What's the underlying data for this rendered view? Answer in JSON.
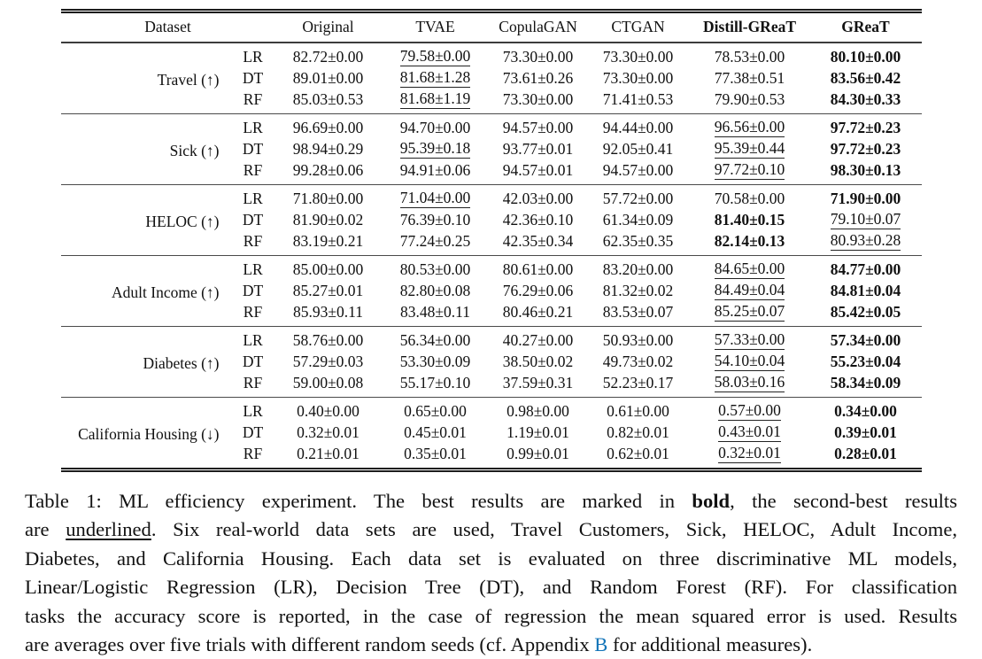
{
  "table": {
    "header": {
      "dataset": "Dataset",
      "columns": [
        {
          "label": "Original",
          "bold": false
        },
        {
          "label": "TVAE",
          "bold": false
        },
        {
          "label": "CopulaGAN",
          "bold": false
        },
        {
          "label": "CTGAN",
          "bold": false
        },
        {
          "label": "Distill-GReaT",
          "bold": true
        },
        {
          "label": "GReaT",
          "bold": true
        }
      ]
    },
    "groups": [
      {
        "dataset": "Travel (↑)",
        "rows": [
          {
            "model": "LR",
            "cells": [
              {
                "v": "82.72±0.00"
              },
              {
                "v": "79.58±0.00",
                "m": "u"
              },
              {
                "v": "73.30±0.00"
              },
              {
                "v": "73.30±0.00"
              },
              {
                "v": "78.53±0.00"
              },
              {
                "v": "80.10±0.00",
                "m": "b"
              }
            ]
          },
          {
            "model": "DT",
            "cells": [
              {
                "v": "89.01±0.00"
              },
              {
                "v": "81.68±1.28",
                "m": "u"
              },
              {
                "v": "73.61±0.26"
              },
              {
                "v": "73.30±0.00"
              },
              {
                "v": "77.38±0.51"
              },
              {
                "v": "83.56±0.42",
                "m": "b"
              }
            ]
          },
          {
            "model": "RF",
            "cells": [
              {
                "v": "85.03±0.53"
              },
              {
                "v": "81.68±1.19",
                "m": "u"
              },
              {
                "v": "73.30±0.00"
              },
              {
                "v": "71.41±0.53"
              },
              {
                "v": "79.90±0.53"
              },
              {
                "v": "84.30±0.33",
                "m": "b"
              }
            ]
          }
        ]
      },
      {
        "dataset": "Sick (↑)",
        "rows": [
          {
            "model": "LR",
            "cells": [
              {
                "v": "96.69±0.00"
              },
              {
                "v": "94.70±0.00"
              },
              {
                "v": "94.57±0.00"
              },
              {
                "v": "94.44±0.00"
              },
              {
                "v": "96.56±0.00",
                "m": "u"
              },
              {
                "v": "97.72±0.23",
                "m": "b"
              }
            ]
          },
          {
            "model": "DT",
            "cells": [
              {
                "v": "98.94±0.29"
              },
              {
                "v": "95.39±0.18",
                "m": "u"
              },
              {
                "v": "93.77±0.01"
              },
              {
                "v": "92.05±0.41"
              },
              {
                "v": "95.39±0.44",
                "m": "u"
              },
              {
                "v": "97.72±0.23",
                "m": "b"
              }
            ]
          },
          {
            "model": "RF",
            "cells": [
              {
                "v": "99.28±0.06"
              },
              {
                "v": "94.91±0.06"
              },
              {
                "v": "94.57±0.01"
              },
              {
                "v": "94.57±0.00"
              },
              {
                "v": "97.72±0.10",
                "m": "u"
              },
              {
                "v": "98.30±0.13",
                "m": "b"
              }
            ]
          }
        ]
      },
      {
        "dataset": "HELOC (↑)",
        "rows": [
          {
            "model": "LR",
            "cells": [
              {
                "v": "71.80±0.00"
              },
              {
                "v": "71.04±0.00",
                "m": "u"
              },
              {
                "v": "42.03±0.00"
              },
              {
                "v": "57.72±0.00"
              },
              {
                "v": "70.58±0.00"
              },
              {
                "v": "71.90±0.00",
                "m": "b"
              }
            ]
          },
          {
            "model": "DT",
            "cells": [
              {
                "v": "81.90±0.02"
              },
              {
                "v": "76.39±0.10"
              },
              {
                "v": "42.36±0.10"
              },
              {
                "v": "61.34±0.09"
              },
              {
                "v": "81.40±0.15",
                "m": "b"
              },
              {
                "v": "79.10±0.07",
                "m": "u"
              }
            ]
          },
          {
            "model": "RF",
            "cells": [
              {
                "v": "83.19±0.21"
              },
              {
                "v": "77.24±0.25"
              },
              {
                "v": "42.35±0.34"
              },
              {
                "v": "62.35±0.35"
              },
              {
                "v": "82.14±0.13",
                "m": "b"
              },
              {
                "v": "80.93±0.28",
                "m": "u"
              }
            ]
          }
        ]
      },
      {
        "dataset": "Adult Income (↑)",
        "rows": [
          {
            "model": "LR",
            "cells": [
              {
                "v": "85.00±0.00"
              },
              {
                "v": "80.53±0.00"
              },
              {
                "v": "80.61±0.00"
              },
              {
                "v": "83.20±0.00"
              },
              {
                "v": "84.65±0.00",
                "m": "u"
              },
              {
                "v": "84.77±0.00",
                "m": "b"
              }
            ]
          },
          {
            "model": "DT",
            "cells": [
              {
                "v": "85.27±0.01"
              },
              {
                "v": "82.80±0.08"
              },
              {
                "v": "76.29±0.06"
              },
              {
                "v": "81.32±0.02"
              },
              {
                "v": "84.49±0.04",
                "m": "u"
              },
              {
                "v": "84.81±0.04",
                "m": "b"
              }
            ]
          },
          {
            "model": "RF",
            "cells": [
              {
                "v": "85.93±0.11"
              },
              {
                "v": "83.48±0.11"
              },
              {
                "v": "80.46±0.21"
              },
              {
                "v": "83.53±0.07"
              },
              {
                "v": "85.25±0.07",
                "m": "u"
              },
              {
                "v": "85.42±0.05",
                "m": "b"
              }
            ]
          }
        ]
      },
      {
        "dataset": "Diabetes (↑)",
        "rows": [
          {
            "model": "LR",
            "cells": [
              {
                "v": "58.76±0.00"
              },
              {
                "v": "56.34±0.00"
              },
              {
                "v": "40.27±0.00"
              },
              {
                "v": "50.93±0.00"
              },
              {
                "v": "57.33±0.00",
                "m": "u"
              },
              {
                "v": "57.34±0.00",
                "m": "b"
              }
            ]
          },
          {
            "model": "DT",
            "cells": [
              {
                "v": "57.29±0.03"
              },
              {
                "v": "53.30±0.09"
              },
              {
                "v": "38.50±0.02"
              },
              {
                "v": "49.73±0.02"
              },
              {
                "v": "54.10±0.04",
                "m": "u"
              },
              {
                "v": "55.23±0.04",
                "m": "b"
              }
            ]
          },
          {
            "model": "RF",
            "cells": [
              {
                "v": "59.00±0.08"
              },
              {
                "v": "55.17±0.10"
              },
              {
                "v": "37.59±0.31"
              },
              {
                "v": "52.23±0.17"
              },
              {
                "v": "58.03±0.16",
                "m": "u"
              },
              {
                "v": "58.34±0.09",
                "m": "b"
              }
            ]
          }
        ]
      },
      {
        "dataset": "California Housing (↓)",
        "rows": [
          {
            "model": "LR",
            "cells": [
              {
                "v": "0.40±0.00"
              },
              {
                "v": "0.65±0.00"
              },
              {
                "v": "0.98±0.00"
              },
              {
                "v": "0.61±0.00"
              },
              {
                "v": "0.57±0.00",
                "m": "u"
              },
              {
                "v": "0.34±0.00",
                "m": "b"
              }
            ]
          },
          {
            "model": "DT",
            "cells": [
              {
                "v": "0.32±0.01"
              },
              {
                "v": "0.45±0.01"
              },
              {
                "v": "1.19±0.01"
              },
              {
                "v": "0.82±0.01"
              },
              {
                "v": "0.43±0.01",
                "m": "u"
              },
              {
                "v": "0.39±0.01",
                "m": "b"
              }
            ]
          },
          {
            "model": "RF",
            "cells": [
              {
                "v": "0.21±0.01"
              },
              {
                "v": "0.35±0.01"
              },
              {
                "v": "0.99±0.01"
              },
              {
                "v": "0.62±0.01"
              },
              {
                "v": "0.32±0.01",
                "m": "u"
              },
              {
                "v": "0.28±0.01",
                "m": "b"
              }
            ]
          }
        ]
      }
    ]
  },
  "caption": {
    "link_color": "#1274b8",
    "lines": [
      [
        {
          "t": "Table 1: ML efficiency experiment.  The best results are marked in "
        },
        {
          "t": "bold",
          "s": "b"
        },
        {
          "t": ", the second-best results"
        }
      ],
      [
        {
          "t": "are "
        },
        {
          "t": "underlined",
          "s": "u"
        },
        {
          "t": ". Six real-world data sets are used, Travel Customers, Sick, HELOC, Adult Income,"
        }
      ],
      [
        {
          "t": "Diabetes, and California Housing.  Each data set is evaluated on three discriminative ML models,"
        }
      ],
      [
        {
          "t": "Linear/Logistic Regression (LR), Decision Tree (DT), and Random Forest (RF). For classification"
        }
      ],
      [
        {
          "t": "tasks the accuracy score is reported, in the case of regression the mean squared error is used. Results"
        }
      ],
      [
        {
          "t": "are averages over five trials with different random seeds (cf. Appendix "
        },
        {
          "t": "B",
          "s": "link"
        },
        {
          "t": " for additional measures)."
        }
      ]
    ]
  }
}
